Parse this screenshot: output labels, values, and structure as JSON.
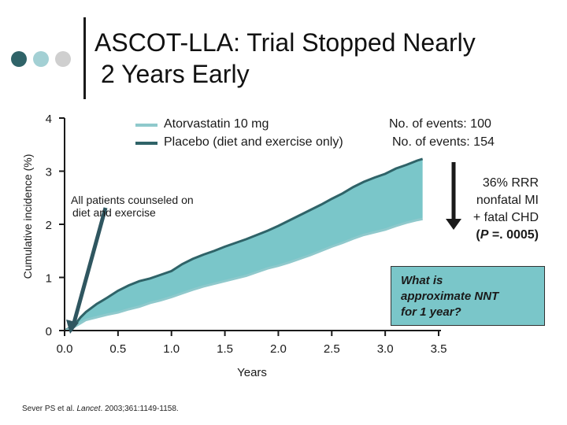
{
  "header": {
    "title_line1": "ASCOT-LLA: Trial Stopped Nearly",
    "title_line2": "2 Years Early",
    "dot_colors": [
      "#2f6368",
      "#a3d0d4",
      "#cfcfcf"
    ]
  },
  "legend": {
    "atorva_label": "Atorvastatin 10 mg",
    "atorva_events": "No. of events: 100",
    "atorva_color": "#8fc9cc",
    "placebo_label": "Placebo (diet and exercise only)",
    "placebo_events": "No. of events: 154",
    "placebo_color": "#2f6368"
  },
  "annotations": {
    "rrr_line1": "36% RRR",
    "rrr_line2": "nonfatal MI",
    "rrr_line3": "+ fatal CHD",
    "rrr_p_prefix": "(",
    "rrr_p_italic": "P",
    "rrr_p_suffix": " =. 0005)",
    "counsel_line1": "All patients counseled on",
    "counsel_line2": "diet and exercise",
    "nnt_line1": "What is",
    "nnt_line2": "approximate NNT",
    "nnt_line3": "for 1 year?",
    "citation_pre": "Sever PS et al. ",
    "citation_journal": "Lancet",
    "citation_post": ". 2003;361:1149-1158."
  },
  "chart_data": {
    "type": "area",
    "title": "ASCOT-LLA: Trial Stopped Nearly 2 Years Early",
    "xlabel": "Years",
    "ylabel": "Cumulative incidence (%)",
    "xlim": [
      0,
      3.5
    ],
    "ylim": [
      0,
      4
    ],
    "x_ticks": [
      0.0,
      0.5,
      1.0,
      1.5,
      2.0,
      2.5,
      3.0,
      3.5
    ],
    "x_tick_labels": [
      "0.0",
      "0.5",
      "1.0",
      "1.5",
      "2.0",
      "2.5",
      "3.0",
      "3.5"
    ],
    "y_ticks": [
      0,
      1,
      2,
      3,
      4
    ],
    "y_tick_labels": [
      "0",
      "1",
      "2",
      "3",
      "4"
    ],
    "fill_color": "#7ac6c9",
    "series": [
      {
        "name": "Placebo (diet and exercise only)",
        "x": [
          0,
          0.05,
          0.1,
          0.15,
          0.2,
          0.3,
          0.4,
          0.5,
          0.6,
          0.7,
          0.8,
          0.9,
          1.0,
          1.1,
          1.2,
          1.3,
          1.4,
          1.5,
          1.6,
          1.7,
          1.8,
          1.9,
          2.0,
          2.1,
          2.2,
          2.3,
          2.4,
          2.5,
          2.6,
          2.7,
          2.8,
          2.9,
          3.0,
          3.1,
          3.2,
          3.3,
          3.35
        ],
        "values": [
          0,
          0.05,
          0.12,
          0.25,
          0.35,
          0.5,
          0.62,
          0.75,
          0.85,
          0.93,
          0.98,
          1.05,
          1.12,
          1.25,
          1.35,
          1.43,
          1.5,
          1.58,
          1.65,
          1.72,
          1.8,
          1.88,
          1.97,
          2.07,
          2.17,
          2.27,
          2.37,
          2.48,
          2.58,
          2.7,
          2.8,
          2.88,
          2.95,
          3.05,
          3.12,
          3.2,
          3.23
        ]
      },
      {
        "name": "Atorvastatin 10 mg",
        "x": [
          0,
          0.05,
          0.1,
          0.15,
          0.2,
          0.3,
          0.4,
          0.5,
          0.6,
          0.7,
          0.8,
          0.9,
          1.0,
          1.1,
          1.2,
          1.3,
          1.4,
          1.5,
          1.6,
          1.7,
          1.8,
          1.9,
          2.0,
          2.1,
          2.2,
          2.3,
          2.4,
          2.5,
          2.6,
          2.7,
          2.8,
          2.9,
          3.0,
          3.1,
          3.2,
          3.3,
          3.35
        ],
        "values": [
          0,
          0.03,
          0.08,
          0.14,
          0.2,
          0.25,
          0.3,
          0.34,
          0.4,
          0.45,
          0.52,
          0.57,
          0.63,
          0.7,
          0.77,
          0.83,
          0.88,
          0.93,
          0.98,
          1.03,
          1.1,
          1.17,
          1.22,
          1.28,
          1.35,
          1.42,
          1.5,
          1.58,
          1.65,
          1.73,
          1.8,
          1.85,
          1.9,
          1.97,
          2.03,
          2.08,
          2.1
        ]
      }
    ]
  }
}
